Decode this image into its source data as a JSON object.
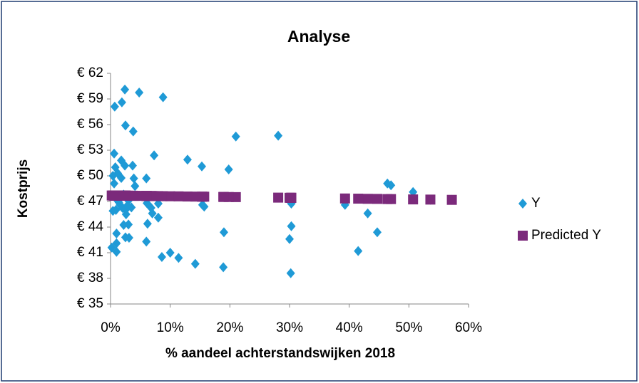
{
  "chart_data": {
    "type": "scatter",
    "title": "Analyse",
    "xlabel": "% aandeel achterstandswijken 2018",
    "ylabel": "Kostprijs",
    "x": [
      2.4,
      4.8,
      8.8,
      0.7,
      1.9,
      2.5,
      3.8,
      21.0,
      28.1,
      0.6,
      7.3,
      12.9,
      15.3,
      1.8,
      2.4,
      3.7,
      0.8,
      19.8,
      1.2,
      0.4,
      6.0,
      3.9,
      1.8,
      0.6,
      46.4,
      47.0,
      4.1,
      50.7,
      2.2,
      1.0,
      3.0,
      1.6,
      2.0,
      3.5,
      6.1,
      6.8,
      8.0,
      15.4,
      15.7,
      30.3,
      39.3,
      0.4,
      2.5,
      7.0,
      43.1,
      8.0,
      6.2,
      3.0,
      2.2,
      30.3,
      44.7,
      19.0,
      1.0,
      2.5,
      3.1,
      6.0,
      30.0,
      1.0,
      0.2,
      1.0,
      41.5,
      10.0,
      8.6,
      11.4,
      14.2,
      18.9,
      30.2,
      53.6,
      57.2,
      1.4,
      2.8,
      0.9,
      3.3,
      2.6
    ],
    "series": [
      {
        "name": "Y",
        "color": "#1f9ad6",
        "marker": "diamond",
        "values": [
          60.1,
          59.75,
          59.2,
          58.1,
          58.6,
          55.9,
          55.2,
          54.6,
          54.7,
          52.6,
          52.4,
          51.9,
          51.1,
          51.8,
          51.2,
          51.2,
          51.0,
          50.75,
          50.3,
          50.0,
          49.7,
          49.7,
          49.75,
          49.1,
          49.1,
          48.9,
          48.8,
          48.1,
          47.8,
          47.25,
          47.1,
          46.6,
          46.25,
          46.3,
          46.8,
          46.25,
          46.75,
          46.6,
          46.4,
          46.75,
          46.6,
          45.9,
          46.0,
          45.6,
          45.6,
          45.1,
          44.4,
          44.3,
          44.25,
          44.1,
          43.4,
          43.4,
          43.25,
          42.8,
          42.75,
          42.3,
          42.6,
          42.1,
          41.6,
          41.1,
          41.2,
          41.0,
          40.5,
          40.4,
          39.7,
          39.3,
          38.6,
          47.2,
          47.2,
          46.9,
          46.5,
          46.0,
          47.5,
          45.5
        ]
      },
      {
        "name": "Predicted Y",
        "color": "#7b2a7b",
        "marker": "square",
        "values": [
          47.68,
          47.66,
          47.62,
          47.69,
          47.68,
          47.68,
          47.67,
          47.51,
          47.45,
          47.69,
          47.63,
          47.58,
          47.56,
          47.68,
          47.68,
          47.67,
          47.69,
          47.52,
          47.69,
          47.7,
          47.65,
          47.66,
          47.68,
          47.69,
          47.28,
          47.28,
          47.66,
          47.24,
          47.68,
          47.69,
          47.67,
          47.69,
          47.68,
          47.67,
          47.65,
          47.64,
          47.63,
          47.56,
          47.56,
          47.43,
          47.35,
          47.7,
          47.68,
          47.64,
          47.31,
          47.63,
          47.64,
          47.67,
          47.68,
          47.43,
          47.3,
          47.53,
          47.69,
          47.68,
          47.67,
          47.65,
          47.43,
          47.69,
          47.7,
          47.69,
          47.33,
          47.61,
          47.62,
          47.6,
          47.57,
          47.53,
          47.43,
          47.22,
          47.19,
          47.69,
          47.67,
          47.69,
          47.67,
          47.68
        ]
      }
    ],
    "xlim": [
      0,
      60
    ],
    "xticks": [
      {
        "value": 0,
        "label": "0%"
      },
      {
        "value": 10,
        "label": "10%"
      },
      {
        "value": 20,
        "label": "20%"
      },
      {
        "value": 30,
        "label": "30%"
      },
      {
        "value": 40,
        "label": "40%"
      },
      {
        "value": 50,
        "label": "50%"
      },
      {
        "value": 60,
        "label": "60%"
      }
    ],
    "ylim": [
      35,
      62
    ],
    "yticks": [
      {
        "value": 35,
        "label": "€ 35"
      },
      {
        "value": 38,
        "label": "€ 38"
      },
      {
        "value": 41,
        "label": "€ 41"
      },
      {
        "value": 44,
        "label": "€ 44"
      },
      {
        "value": 47,
        "label": "€ 47"
      },
      {
        "value": 50,
        "label": "€ 50"
      },
      {
        "value": 53,
        "label": "€ 53"
      },
      {
        "value": 56,
        "label": "€ 56"
      },
      {
        "value": 59,
        "label": "€ 59"
      },
      {
        "value": 62,
        "label": "€ 62"
      }
    ],
    "grid": false,
    "legend": "right"
  }
}
